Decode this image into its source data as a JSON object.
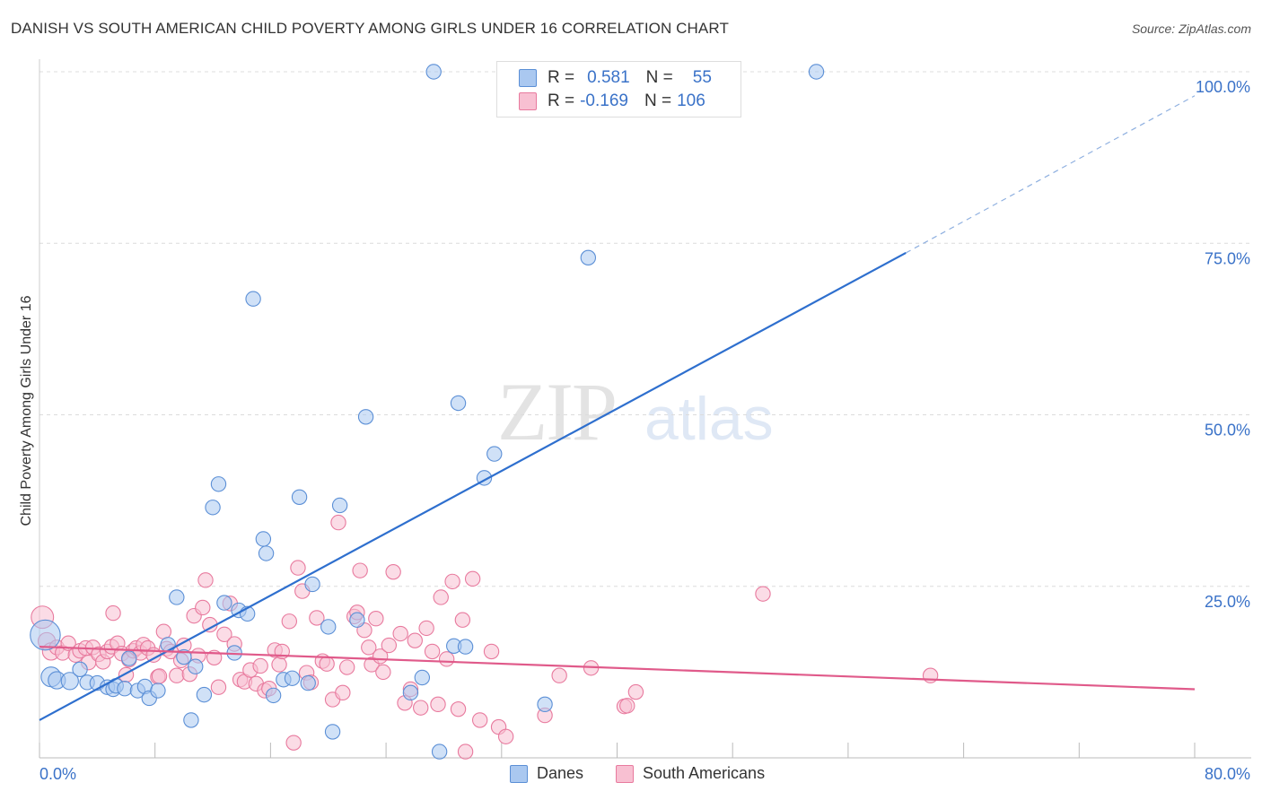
{
  "title": "DANISH VS SOUTH AMERICAN CHILD POVERTY AMONG GIRLS UNDER 16 CORRELATION CHART",
  "source": "Source: ZipAtlas.com",
  "watermark": {
    "zip": "ZIP",
    "atlas": "atlas"
  },
  "legend": {
    "rows": [
      {
        "r_label": "R =",
        "r_value": "0.581",
        "n_label": "N =",
        "n_value": "55",
        "color": "#aac8f0",
        "border": "#5b8fd6"
      },
      {
        "r_label": "R =",
        "r_value": "-0.169",
        "n_label": "N =",
        "n_value": "106",
        "color": "#f8c0d2",
        "border": "#e87a9e"
      }
    ]
  },
  "bottom_legend": [
    {
      "label": "Danes",
      "color": "#aac8f0",
      "border": "#5b8fd6"
    },
    {
      "label": "South Americans",
      "color": "#f8c0d2",
      "border": "#e87a9e"
    }
  ],
  "chart_data": {
    "type": "scatter",
    "title": "DANISH VS SOUTH AMERICAN CHILD POVERTY AMONG GIRLS UNDER 16 CORRELATION CHART",
    "xlabel": "",
    "ylabel": "Child Poverty Among Girls Under 16",
    "xlim": [
      0,
      80
    ],
    "ylim": [
      0,
      100
    ],
    "x_tick_labels": [
      "0.0%",
      "80.0%"
    ],
    "y_tick_labels": [
      "25.0%",
      "50.0%",
      "75.0%",
      "100.0%"
    ],
    "y_ticks": [
      25,
      50,
      75,
      100
    ],
    "grid": true,
    "legend_position": "top-center",
    "series": [
      {
        "name": "Danes",
        "color": "#5b8fd6",
        "fill": "#aac8f0",
        "trend": {
          "x": [
            0,
            60
          ],
          "y": [
            5.5,
            73.6
          ],
          "extended_x": [
            60,
            80
          ],
          "extended_y": [
            73.6,
            96.5
          ],
          "color": "#2e6fce"
        },
        "points": [
          [
            0.4,
            17.9,
            22
          ],
          [
            0.8,
            11.8,
            14
          ],
          [
            1.2,
            11.3,
            12
          ],
          [
            2.1,
            11.2,
            12
          ],
          [
            2.8,
            12.9,
            10
          ],
          [
            3.3,
            11.0,
            10
          ],
          [
            4.0,
            10.9,
            10
          ],
          [
            4.7,
            10.3,
            10
          ],
          [
            5.1,
            10.0,
            10
          ],
          [
            5.3,
            10.5,
            10
          ],
          [
            5.9,
            10.1,
            10
          ],
          [
            6.2,
            14.5,
            10
          ],
          [
            6.8,
            9.8,
            10
          ],
          [
            7.3,
            10.4,
            10
          ],
          [
            7.6,
            8.7,
            10
          ],
          [
            8.2,
            9.8,
            10
          ],
          [
            8.9,
            16.5,
            10
          ],
          [
            9.5,
            23.4,
            10
          ],
          [
            10.0,
            14.7,
            10
          ],
          [
            10.5,
            5.5,
            10
          ],
          [
            10.8,
            13.3,
            10
          ],
          [
            11.4,
            9.2,
            10
          ],
          [
            12.0,
            36.5,
            10
          ],
          [
            12.4,
            39.9,
            10
          ],
          [
            12.8,
            22.6,
            10
          ],
          [
            13.5,
            15.3,
            10
          ],
          [
            13.8,
            21.5,
            10
          ],
          [
            14.4,
            21.0,
            10
          ],
          [
            14.8,
            66.9,
            10
          ],
          [
            15.5,
            31.9,
            10
          ],
          [
            15.7,
            29.8,
            10
          ],
          [
            16.2,
            9.1,
            10
          ],
          [
            16.9,
            11.4,
            10
          ],
          [
            17.5,
            11.6,
            10
          ],
          [
            18.0,
            38.0,
            10
          ],
          [
            18.6,
            10.9,
            10
          ],
          [
            18.9,
            25.3,
            10
          ],
          [
            20.0,
            19.1,
            10
          ],
          [
            20.3,
            3.8,
            10
          ],
          [
            20.8,
            36.8,
            10
          ],
          [
            22.0,
            20.1,
            10
          ],
          [
            22.6,
            49.7,
            10
          ],
          [
            25.7,
            9.5,
            10
          ],
          [
            26.5,
            11.7,
            10
          ],
          [
            27.3,
            100.0,
            10
          ],
          [
            27.7,
            0.9,
            10
          ],
          [
            28.7,
            16.3,
            10
          ],
          [
            29.0,
            51.7,
            10
          ],
          [
            29.5,
            16.2,
            10
          ],
          [
            30.8,
            40.8,
            10
          ],
          [
            31.5,
            44.3,
            10
          ],
          [
            35.0,
            7.8,
            10
          ],
          [
            38.0,
            72.9,
            10
          ],
          [
            53.8,
            100.0,
            10
          ]
        ]
      },
      {
        "name": "South Americans",
        "color": "#e87a9e",
        "fill": "#f8c0d2",
        "trend": {
          "x": [
            0,
            80
          ],
          "y": [
            16.2,
            10.0
          ],
          "color": "#e05a8a"
        },
        "points": [
          [
            0.2,
            20.5,
            16
          ],
          [
            0.5,
            17.0,
            12
          ],
          [
            0.8,
            15.5,
            12
          ],
          [
            1.2,
            16.1,
            10
          ],
          [
            1.6,
            15.3,
            10
          ],
          [
            2.0,
            16.7,
            10
          ],
          [
            2.5,
            15.0,
            10
          ],
          [
            2.8,
            15.6,
            10
          ],
          [
            3.2,
            16.0,
            10
          ],
          [
            3.4,
            13.9,
            10
          ],
          [
            3.7,
            16.1,
            10
          ],
          [
            4.1,
            15.1,
            10
          ],
          [
            4.4,
            14.0,
            10
          ],
          [
            4.7,
            15.5,
            10
          ],
          [
            5.0,
            16.2,
            10
          ],
          [
            5.1,
            21.1,
            10
          ],
          [
            5.4,
            16.7,
            10
          ],
          [
            5.7,
            15.2,
            10
          ],
          [
            6.0,
            12.1,
            10
          ],
          [
            6.2,
            14.3,
            10
          ],
          [
            6.5,
            15.6,
            10
          ],
          [
            6.7,
            16.0,
            10
          ],
          [
            7.0,
            15.3,
            10
          ],
          [
            7.2,
            16.5,
            10
          ],
          [
            7.5,
            16.0,
            10
          ],
          [
            7.9,
            15.0,
            10
          ],
          [
            8.2,
            11.8,
            10
          ],
          [
            8.3,
            11.9,
            10
          ],
          [
            8.6,
            18.4,
            10
          ],
          [
            8.8,
            15.9,
            10
          ],
          [
            9.1,
            15.5,
            10
          ],
          [
            9.5,
            12.0,
            10
          ],
          [
            9.8,
            14.2,
            10
          ],
          [
            10.0,
            16.4,
            10
          ],
          [
            10.4,
            12.2,
            10
          ],
          [
            10.7,
            20.7,
            10
          ],
          [
            11.0,
            14.9,
            10
          ],
          [
            11.3,
            21.9,
            10
          ],
          [
            11.5,
            25.9,
            10
          ],
          [
            11.8,
            19.4,
            10
          ],
          [
            12.1,
            14.6,
            10
          ],
          [
            12.4,
            10.3,
            10
          ],
          [
            12.8,
            18.0,
            10
          ],
          [
            13.2,
            22.5,
            10
          ],
          [
            13.5,
            16.6,
            10
          ],
          [
            13.9,
            11.4,
            10
          ],
          [
            14.2,
            11.1,
            10
          ],
          [
            14.6,
            12.8,
            10
          ],
          [
            15.0,
            10.8,
            10
          ],
          [
            15.3,
            13.4,
            10
          ],
          [
            15.6,
            9.8,
            10
          ],
          [
            15.9,
            10.1,
            10
          ],
          [
            16.3,
            15.7,
            10
          ],
          [
            16.6,
            13.6,
            10
          ],
          [
            16.8,
            15.5,
            10
          ],
          [
            17.3,
            19.9,
            10
          ],
          [
            17.6,
            2.2,
            10
          ],
          [
            17.9,
            27.7,
            10
          ],
          [
            18.2,
            24.3,
            10
          ],
          [
            18.5,
            12.4,
            10
          ],
          [
            18.8,
            11.0,
            10
          ],
          [
            19.2,
            20.4,
            10
          ],
          [
            19.6,
            14.1,
            10
          ],
          [
            19.9,
            13.7,
            10
          ],
          [
            20.3,
            8.5,
            10
          ],
          [
            20.7,
            34.3,
            10
          ],
          [
            21.0,
            9.5,
            10
          ],
          [
            21.3,
            13.2,
            10
          ],
          [
            21.8,
            20.6,
            10
          ],
          [
            22.0,
            21.2,
            10
          ],
          [
            22.2,
            27.3,
            10
          ],
          [
            22.5,
            18.6,
            10
          ],
          [
            22.8,
            16.1,
            10
          ],
          [
            23.0,
            13.6,
            10
          ],
          [
            23.3,
            20.3,
            10
          ],
          [
            23.6,
            14.8,
            10
          ],
          [
            23.8,
            12.5,
            10
          ],
          [
            24.2,
            16.4,
            10
          ],
          [
            24.5,
            27.1,
            10
          ],
          [
            25.0,
            18.1,
            10
          ],
          [
            25.3,
            8.0,
            10
          ],
          [
            25.7,
            10.0,
            10
          ],
          [
            26.0,
            17.1,
            10
          ],
          [
            26.4,
            7.3,
            10
          ],
          [
            26.8,
            18.9,
            10
          ],
          [
            27.2,
            15.5,
            10
          ],
          [
            27.6,
            7.8,
            10
          ],
          [
            27.8,
            23.4,
            10
          ],
          [
            28.2,
            14.4,
            10
          ],
          [
            28.6,
            25.7,
            10
          ],
          [
            29.0,
            7.1,
            10
          ],
          [
            29.3,
            20.1,
            10
          ],
          [
            29.5,
            0.9,
            10
          ],
          [
            30.0,
            26.1,
            10
          ],
          [
            30.5,
            5.5,
            10
          ],
          [
            31.3,
            15.5,
            10
          ],
          [
            31.8,
            4.5,
            10
          ],
          [
            32.3,
            3.1,
            10
          ],
          [
            35.0,
            6.2,
            10
          ],
          [
            36.0,
            12.0,
            10
          ],
          [
            38.2,
            13.1,
            10
          ],
          [
            40.5,
            7.5,
            10
          ],
          [
            40.7,
            7.6,
            10
          ],
          [
            41.3,
            9.6,
            10
          ],
          [
            50.1,
            23.9,
            10
          ],
          [
            61.7,
            12.0,
            10
          ]
        ]
      }
    ]
  }
}
